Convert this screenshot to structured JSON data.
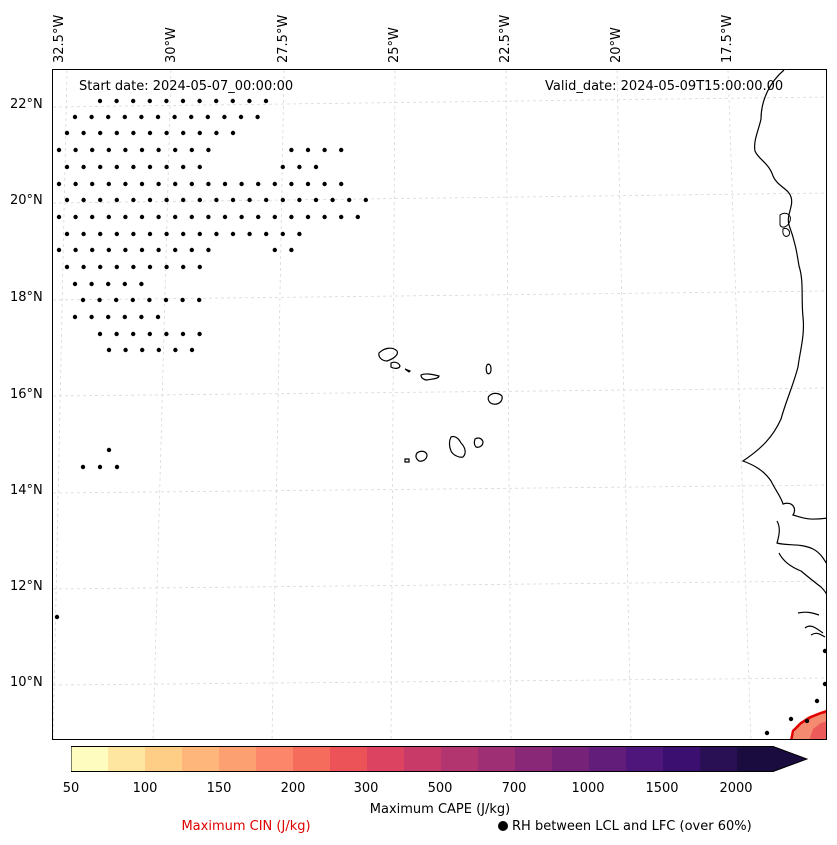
{
  "map": {
    "start_date": "Start date: 2024-05-07_00:00:00",
    "valid_date": "Valid_date: 2024-05-09T15:00:00.00",
    "lon_labels": [
      "32.5°W",
      "30°W",
      "27.5°W",
      "25°W",
      "22.5°W",
      "20°W",
      "17.5°W"
    ],
    "lat_labels": [
      "22°N",
      "20°N",
      "18°N",
      "16°N",
      "14°N",
      "12°N",
      "10°N"
    ]
  },
  "colorbar": {
    "title": "Maximum CAPE (J/kg)",
    "tick_labels": [
      "50",
      "100",
      "150",
      "200",
      "300",
      "500",
      "700",
      "1000",
      "1500",
      "2000"
    ],
    "colors": [
      "#fefcbf",
      "#fee6a1",
      "#fecd86",
      "#feb67a",
      "#fca071",
      "#fb866a",
      "#f56b5c",
      "#ec5359",
      "#dc4360",
      "#c83b69",
      "#b3356f",
      "#9e2f74",
      "#8a2878",
      "#762279",
      "#621d7b",
      "#4e167a",
      "#3b0f6f",
      "#291055",
      "#1b0c3f"
    ]
  },
  "legend": {
    "cin_label": "Maximum CIN (J/kg)",
    "cin_color": "#e00000",
    "rh_label": "RH between LCL and LFC (over 60%)"
  }
}
